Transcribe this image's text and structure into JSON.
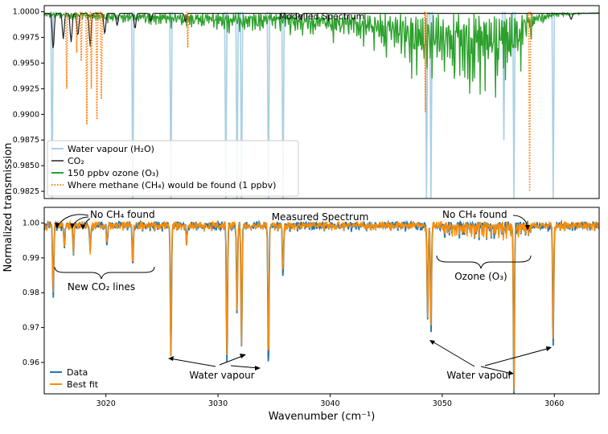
{
  "chart_data": [
    {
      "type": "line",
      "title": "Modelled Spectrum",
      "xlim": [
        3014.5,
        3064
      ],
      "ylim": [
        0.9818,
        1.0006
      ],
      "yticks": [
        1.0,
        0.9975,
        0.995,
        0.9925,
        0.99,
        0.9875,
        0.985,
        0.9825
      ],
      "ytick_labels": [
        "1.0000",
        "0.9975",
        "0.9950",
        "0.9925",
        "0.9900",
        "0.9875",
        "0.9850",
        "0.9825"
      ],
      "legend_placement": "bottom-left",
      "series": [
        {
          "name": "Water vapour (H₂O)",
          "style": "solid",
          "color": "#a9cfe3",
          "lines": [
            {
              "x": 3015.2,
              "depth": 0.0182
            },
            {
              "x": 3022.4,
              "depth": 0.0182
            },
            {
              "x": 3025.8,
              "depth": 0.0182
            },
            {
              "x": 3030.7,
              "depth": 0.0182
            },
            {
              "x": 3031.7,
              "depth": 0.0182
            },
            {
              "x": 3032.1,
              "depth": 0.0182
            },
            {
              "x": 3034.5,
              "depth": 0.0182
            },
            {
              "x": 3035.8,
              "depth": 0.0182
            },
            {
              "x": 3048.6,
              "depth": 0.0182
            },
            {
              "x": 3049.0,
              "depth": 0.0182
            },
            {
              "x": 3055.5,
              "depth": 0.0125
            },
            {
              "x": 3056.4,
              "depth": 0.0182
            },
            {
              "x": 3059.9,
              "depth": 0.0182
            }
          ]
        },
        {
          "name": "CO₂",
          "style": "solid",
          "color": "#222222",
          "lines": [
            {
              "x": 3015.3,
              "depth": 0.0035
            },
            {
              "x": 3016.2,
              "depth": 0.0025
            },
            {
              "x": 3016.9,
              "depth": 0.0028
            },
            {
              "x": 3017.5,
              "depth": 0.0022
            },
            {
              "x": 3018.6,
              "depth": 0.0032
            },
            {
              "x": 3019.9,
              "depth": 0.002
            },
            {
              "x": 3021.0,
              "depth": 0.0012
            },
            {
              "x": 3022.6,
              "depth": 0.0015
            },
            {
              "x": 3024.0,
              "depth": 0.0008
            },
            {
              "x": 3027.1,
              "depth": 0.0008
            },
            {
              "x": 3037.4,
              "depth": 0.0006
            },
            {
              "x": 3061.5,
              "depth": 0.0006
            }
          ]
        },
        {
          "name": "150 ppbv ozone (O₃)",
          "style": "solid",
          "color": "#2ca02c",
          "profile": [
            {
              "x": 3014.5,
              "depth": 0.0005
            },
            {
              "x": 3020,
              "depth": 0.0012
            },
            {
              "x": 3025,
              "depth": 0.0016
            },
            {
              "x": 3030,
              "depth": 0.0022
            },
            {
              "x": 3035,
              "depth": 0.0025
            },
            {
              "x": 3038,
              "depth": 0.0028
            },
            {
              "x": 3041,
              "depth": 0.0035
            },
            {
              "x": 3044,
              "depth": 0.0045
            },
            {
              "x": 3047,
              "depth": 0.0065
            },
            {
              "x": 3050,
              "depth": 0.0085
            },
            {
              "x": 3053,
              "depth": 0.0098
            },
            {
              "x": 3055,
              "depth": 0.0102
            },
            {
              "x": 3057,
              "depth": 0.0065
            },
            {
              "x": 3058.5,
              "depth": 0.002
            },
            {
              "x": 3060,
              "depth": 0.0005
            },
            {
              "x": 3064,
              "depth": 0.0
            }
          ]
        },
        {
          "name": "Where methane (CH₄) would be found (1 ppbv)",
          "style": "dotted",
          "color": "#ff7f0e",
          "lines": [
            {
              "x": 3016.5,
              "depth": 0.0075
            },
            {
              "x": 3017.4,
              "depth": 0.004
            },
            {
              "x": 3017.8,
              "depth": 0.0048
            },
            {
              "x": 3018.3,
              "depth": 0.011
            },
            {
              "x": 3018.7,
              "depth": 0.0075
            },
            {
              "x": 3019.2,
              "depth": 0.0105
            },
            {
              "x": 3019.6,
              "depth": 0.0085
            },
            {
              "x": 3027.3,
              "depth": 0.0035
            },
            {
              "x": 3048.5,
              "depth": 0.0098
            },
            {
              "x": 3057.8,
              "depth": 0.0175
            }
          ]
        }
      ]
    },
    {
      "type": "line",
      "title": "Measured Spectrum",
      "xlabel": "Wavenumber (cm⁻¹)",
      "ylabel": "Normalized transmission",
      "xlim": [
        3014.5,
        3064
      ],
      "ylim": [
        0.951,
        1.0045
      ],
      "xticks": [
        3020,
        3030,
        3040,
        3050,
        3060
      ],
      "yticks": [
        1.0,
        0.99,
        0.98,
        0.97,
        0.96
      ],
      "ytick_labels": [
        "1.00",
        "0.99",
        "0.98",
        "0.97",
        "0.96"
      ],
      "legend_placement": "bottom-left",
      "series": [
        {
          "name": "Data",
          "color": "#1f77b4",
          "lines": [
            {
              "x": 3015.3,
              "min": 0.979
            },
            {
              "x": 3016.3,
              "min": 0.994
            },
            {
              "x": 3017.1,
              "min": 0.992
            },
            {
              "x": 3018.6,
              "min": 0.992
            },
            {
              "x": 3020.1,
              "min": 0.994
            },
            {
              "x": 3022.4,
              "min": 0.989
            },
            {
              "x": 3025.8,
              "min": 0.962
            },
            {
              "x": 3027.2,
              "min": 0.995
            },
            {
              "x": 3030.8,
              "min": 0.9605
            },
            {
              "x": 3031.7,
              "min": 0.975
            },
            {
              "x": 3032.1,
              "min": 0.9645
            },
            {
              "x": 3034.5,
              "min": 0.958
            },
            {
              "x": 3035.8,
              "min": 0.984
            },
            {
              "x": 3048.7,
              "min": 0.9725
            },
            {
              "x": 3049.0,
              "min": 0.9685
            },
            {
              "x": 3055.5,
              "min": 0.9975
            },
            {
              "x": 3056.4,
              "min": 0.952
            },
            {
              "x": 3059.9,
              "min": 0.9645
            }
          ]
        },
        {
          "name": "Best fit",
          "color": "#ff8c00",
          "lines": [
            {
              "x": 3015.3,
              "min": 0.98
            },
            {
              "x": 3016.3,
              "min": 0.994
            },
            {
              "x": 3017.1,
              "min": 0.9925
            },
            {
              "x": 3018.6,
              "min": 0.9925
            },
            {
              "x": 3020.1,
              "min": 0.9945
            },
            {
              "x": 3022.4,
              "min": 0.9895
            },
            {
              "x": 3025.8,
              "min": 0.962
            },
            {
              "x": 3027.2,
              "min": 0.995
            },
            {
              "x": 3030.8,
              "min": 0.9625
            },
            {
              "x": 3031.7,
              "min": 0.9755
            },
            {
              "x": 3032.1,
              "min": 0.966
            },
            {
              "x": 3034.5,
              "min": 0.9605
            },
            {
              "x": 3035.8,
              "min": 0.9865
            },
            {
              "x": 3048.7,
              "min": 0.974
            },
            {
              "x": 3049.0,
              "min": 0.97
            },
            {
              "x": 3055.5,
              "min": 0.998
            },
            {
              "x": 3056.4,
              "min": 0.9535
            },
            {
              "x": 3059.9,
              "min": 0.9665
            }
          ]
        }
      ],
      "annotations": {
        "no_ch4_left": "No CH₄ found",
        "no_ch4_right": "No CH₄ found",
        "new_co2": "New CO₂ lines",
        "ozone": "Ozone (O₃)",
        "water_vapour_left": "Water vapour",
        "water_vapour_right": "Water vapour"
      }
    }
  ]
}
